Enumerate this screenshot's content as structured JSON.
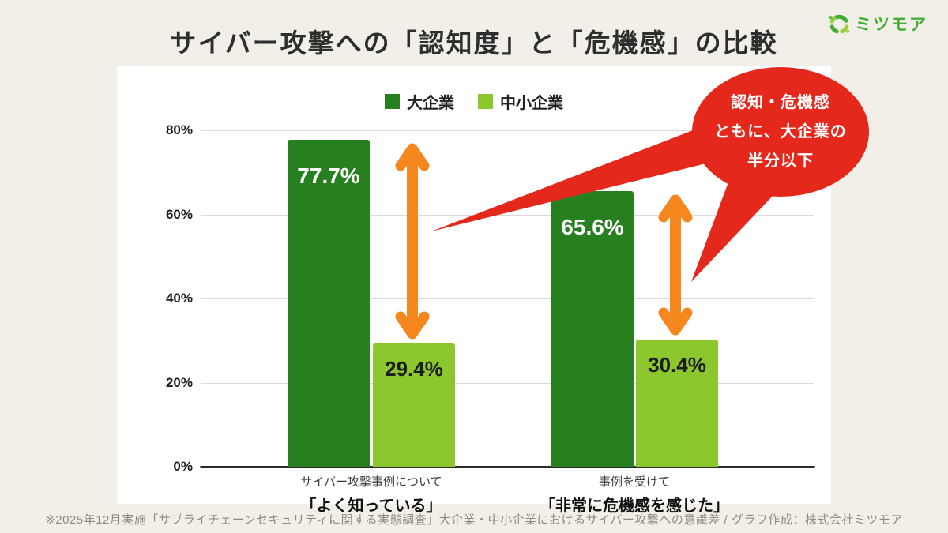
{
  "header": {
    "title": "サイバー攻撃への「認知度」と「危機感」の比較",
    "brand": "ミツモア"
  },
  "chart_data": {
    "type": "bar",
    "title": "サイバー攻撃への「認知度」と「危機感」の比較",
    "categories": [
      {
        "line1": "サイバー攻撃事例について",
        "line2": "「よく知っている」"
      },
      {
        "line1": "事例を受けて",
        "line2": "「非常に危機感を感じた」"
      }
    ],
    "series": [
      {
        "name": "大企業",
        "values": [
          77.7,
          65.6
        ],
        "labels": [
          "77.7%",
          "65.6%"
        ],
        "color": "#26801f"
      },
      {
        "name": "中小企業",
        "values": [
          29.4,
          30.4
        ],
        "labels": [
          "29.4%",
          "30.4%"
        ],
        "color": "#8dc72e"
      }
    ],
    "ylim": [
      0,
      80
    ],
    "yticks": [
      "0%",
      "20%",
      "40%",
      "60%",
      "80%"
    ],
    "grid": true,
    "legend_position": "top",
    "gap_arrows": {
      "color": "#f6861e",
      "between": [
        "大企業",
        "中小企業"
      ]
    }
  },
  "annotation": {
    "lines": [
      "認知・危機感",
      "ともに、大企業の",
      "半分以下"
    ],
    "color": "#e5281c"
  },
  "footer": {
    "note": "※2025年12月実施「サプライチェーンセキュリティに関する実態調査」大企業・中小企業におけるサイバー攻撃への意識差 / グラフ作成：株式会社ミツモア"
  },
  "colors": {
    "background": "#f2efe9",
    "panel": "#ffffff",
    "title_text": "#2e2e2e",
    "dark_green": "#26801f",
    "light_green": "#8dc72e",
    "orange": "#f6861e",
    "red": "#e5281c",
    "gridline": "#dadada",
    "axis": "#2b2b2b",
    "footer_text": "#8f8a82",
    "brand_green": "#43ae35"
  }
}
